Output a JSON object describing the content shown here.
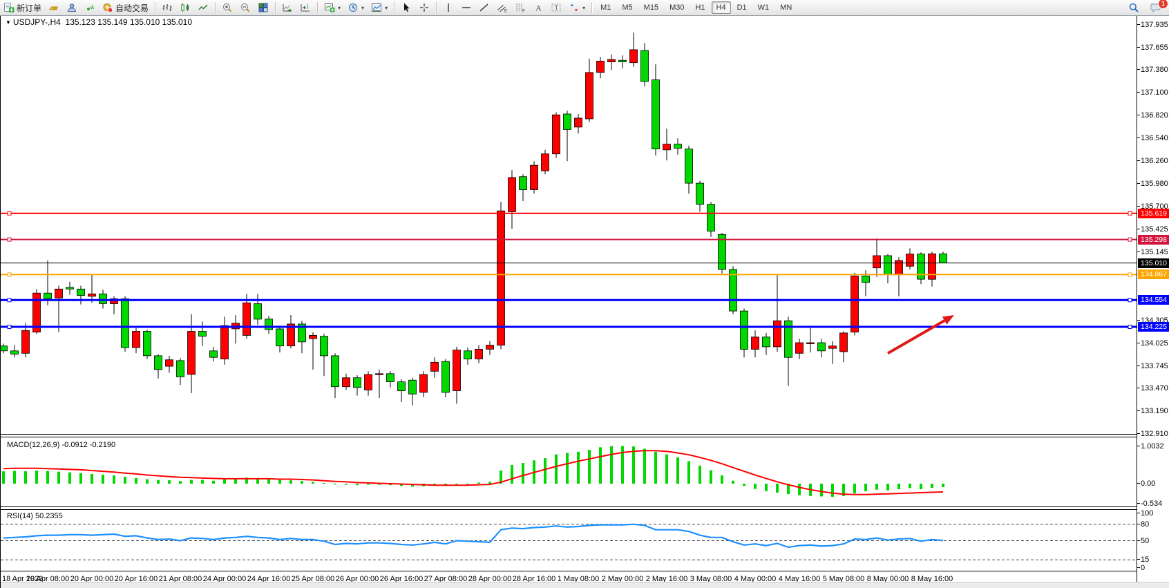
{
  "toolbar": {
    "buttons": [
      {
        "name": "new-order",
        "label": "新订单"
      },
      {
        "name": "gold"
      },
      {
        "name": "community"
      },
      {
        "name": "signals"
      },
      {
        "name": "auto-trading",
        "label": "自动交易"
      },
      {
        "name": "separator"
      },
      {
        "name": "bars-chart"
      },
      {
        "name": "candles-chart"
      },
      {
        "name": "line-chart"
      },
      {
        "name": "separator"
      },
      {
        "name": "zoom-in"
      },
      {
        "name": "zoom-out"
      },
      {
        "name": "tile-windows"
      },
      {
        "name": "separator"
      },
      {
        "name": "auto-scroll"
      },
      {
        "name": "chart-shift"
      },
      {
        "name": "separator"
      },
      {
        "name": "new-chart",
        "caret": true
      },
      {
        "name": "profiles",
        "caret": true
      },
      {
        "name": "templates",
        "caret": true
      },
      {
        "name": "separator"
      },
      {
        "name": "cursor"
      },
      {
        "name": "crosshair"
      },
      {
        "name": "separator"
      },
      {
        "name": "vertical-line"
      },
      {
        "name": "horizontal-line"
      },
      {
        "name": "trendline"
      },
      {
        "name": "equidistant-channel"
      },
      {
        "name": "fibonacci"
      },
      {
        "name": "text"
      },
      {
        "name": "text-label"
      },
      {
        "name": "arrows",
        "caret": true
      },
      {
        "name": "separator"
      }
    ],
    "timeframes": [
      "M1",
      "M5",
      "M15",
      "M30",
      "H1",
      "H4",
      "D1",
      "W1",
      "MN"
    ],
    "active_timeframe": "H4",
    "notification_count": "1"
  },
  "chart": {
    "title_marker": "▼",
    "symbol_timeframe": "USDJPY-,H4",
    "ohlc_text": "135.123 135.149 135.010 135.010"
  },
  "price_axis": {
    "ticks": [
      "137.935",
      "137.655",
      "137.380",
      "137.100",
      "136.820",
      "136.540",
      "136.260",
      "135.980",
      "135.700",
      "135.425",
      "135.145",
      "134.305",
      "134.025",
      "133.745",
      "133.470",
      "133.190",
      "132.910"
    ]
  },
  "time_axis": {
    "labels": [
      "18 Apr 2023",
      "19 Apr 08:00",
      "20 Apr 00:00",
      "20 Apr 16:00",
      "21 Apr 08:00",
      "24 Apr 00:00",
      "24 Apr 16:00",
      "25 Apr 08:00",
      "26 Apr 00:00",
      "26 Apr 16:00",
      "27 Apr 08:00",
      "28 Apr 00:00",
      "28 Apr 16:00",
      "1 May 08:00",
      "2 May 00:00",
      "2 May 16:00",
      "3 May 08:00",
      "4 May 00:00",
      "4 May 16:00",
      "5 May 08:00",
      "8 May 00:00",
      "8 May 16:00"
    ]
  },
  "macd": {
    "name": "MACD(12,26,9)",
    "values": "-0.0912 -0.2190",
    "axis_labels": [
      "1.0032",
      "0.00",
      "-0.534"
    ],
    "axis_values": [
      1.0032,
      0,
      -0.534
    ]
  },
  "rsi": {
    "name": "RSI(14)",
    "value": "50.2355",
    "axis_labels": [
      "100",
      "80",
      "50",
      "15",
      "0"
    ],
    "axis_values": [
      100,
      80,
      50,
      15,
      0
    ],
    "level_lines": [
      80,
      50,
      15
    ]
  },
  "chart_data": {
    "type": "candlestick",
    "symbol": "USDJPY-",
    "timeframe": "H4",
    "title": "USDJPY-,H4 135.123 135.149 135.010 135.010",
    "current_bar": {
      "open": 135.123,
      "high": 135.149,
      "low": 135.01,
      "close": 135.01
    },
    "y_axis_range": [
      132.85,
      138.05
    ],
    "bull_color": "#FF0000",
    "bear_color": "#00D800",
    "candles_ohlc": [
      [
        133.99,
        134.02,
        133.9,
        133.93
      ],
      [
        133.93,
        134.0,
        133.85,
        133.89
      ],
      [
        133.9,
        134.27,
        133.85,
        134.18
      ],
      [
        134.16,
        134.69,
        134.14,
        134.64
      ],
      [
        134.64,
        135.04,
        134.49,
        134.57
      ],
      [
        134.58,
        134.73,
        134.16,
        134.69
      ],
      [
        134.71,
        134.78,
        134.62,
        134.69
      ],
      [
        134.69,
        134.73,
        134.5,
        134.61
      ],
      [
        134.6,
        134.87,
        134.52,
        134.63
      ],
      [
        134.63,
        134.68,
        134.45,
        134.51
      ],
      [
        134.51,
        134.6,
        134.38,
        134.57
      ],
      [
        134.57,
        134.6,
        133.92,
        133.97
      ],
      [
        133.97,
        134.21,
        133.9,
        134.17
      ],
      [
        134.17,
        134.19,
        133.83,
        133.87
      ],
      [
        133.87,
        133.89,
        133.59,
        133.7
      ],
      [
        133.74,
        133.87,
        133.66,
        133.82
      ],
      [
        133.81,
        133.84,
        133.51,
        133.61
      ],
      [
        133.64,
        134.38,
        133.41,
        134.17
      ],
      [
        134.17,
        134.29,
        133.99,
        134.11
      ],
      [
        133.93,
        133.98,
        133.8,
        133.85
      ],
      [
        133.83,
        134.35,
        133.76,
        134.24
      ],
      [
        134.2,
        134.37,
        134.02,
        134.27
      ],
      [
        134.12,
        134.63,
        134.08,
        134.52
      ],
      [
        134.51,
        134.63,
        134.25,
        134.32
      ],
      [
        134.32,
        134.36,
        134.14,
        134.19
      ],
      [
        134.2,
        134.24,
        133.91,
        133.99
      ],
      [
        133.99,
        134.37,
        133.96,
        134.26
      ],
      [
        134.26,
        134.3,
        133.9,
        134.04
      ],
      [
        134.08,
        134.16,
        133.7,
        134.12
      ],
      [
        134.11,
        134.14,
        133.62,
        133.87
      ],
      [
        133.87,
        133.9,
        133.35,
        133.49
      ],
      [
        133.49,
        133.65,
        133.45,
        133.6
      ],
      [
        133.6,
        133.63,
        133.38,
        133.48
      ],
      [
        133.45,
        133.68,
        133.38,
        133.64
      ],
      [
        133.64,
        133.7,
        133.35,
        133.65
      ],
      [
        133.65,
        133.68,
        133.48,
        133.55
      ],
      [
        133.55,
        133.58,
        133.3,
        133.44
      ],
      [
        133.57,
        133.6,
        133.26,
        133.4
      ],
      [
        133.42,
        133.68,
        133.36,
        133.64
      ],
      [
        133.68,
        133.85,
        133.6,
        133.79
      ],
      [
        133.8,
        133.83,
        133.36,
        133.42
      ],
      [
        133.44,
        133.98,
        133.28,
        133.94
      ],
      [
        133.93,
        133.97,
        133.76,
        133.83
      ],
      [
        133.83,
        134.0,
        133.78,
        133.95
      ],
      [
        133.95,
        134.05,
        133.88,
        134.0
      ],
      [
        134.0,
        135.76,
        133.95,
        135.65
      ],
      [
        135.64,
        136.15,
        135.43,
        136.06
      ],
      [
        136.07,
        136.1,
        135.77,
        135.91
      ],
      [
        135.91,
        136.26,
        135.86,
        136.21
      ],
      [
        136.14,
        136.4,
        136.1,
        136.35
      ],
      [
        136.35,
        136.86,
        136.3,
        136.83
      ],
      [
        136.84,
        136.88,
        136.26,
        136.65
      ],
      [
        136.68,
        136.84,
        136.6,
        136.79
      ],
      [
        136.78,
        137.52,
        136.74,
        137.35
      ],
      [
        137.35,
        137.54,
        137.28,
        137.49
      ],
      [
        137.48,
        137.57,
        137.38,
        137.51
      ],
      [
        137.5,
        137.56,
        137.4,
        137.48
      ],
      [
        137.47,
        137.84,
        137.42,
        137.63
      ],
      [
        137.62,
        137.71,
        137.18,
        137.24
      ],
      [
        137.26,
        137.45,
        136.33,
        136.41
      ],
      [
        136.4,
        136.66,
        136.27,
        136.47
      ],
      [
        136.47,
        136.54,
        136.34,
        136.42
      ],
      [
        136.41,
        136.45,
        135.86,
        135.99
      ],
      [
        135.99,
        136.02,
        135.64,
        135.73
      ],
      [
        135.73,
        135.76,
        135.33,
        135.4
      ],
      [
        135.36,
        135.38,
        134.88,
        134.93
      ],
      [
        134.93,
        134.97,
        134.38,
        134.42
      ],
      [
        134.42,
        134.45,
        133.85,
        133.95
      ],
      [
        133.95,
        134.18,
        133.85,
        134.1
      ],
      [
        134.1,
        134.15,
        133.88,
        133.98
      ],
      [
        133.98,
        134.87,
        133.92,
        134.3
      ],
      [
        134.3,
        134.35,
        133.5,
        133.85
      ],
      [
        133.9,
        134.08,
        133.83,
        134.03
      ],
      [
        134.03,
        134.23,
        133.91,
        134.03
      ],
      [
        134.03,
        134.08,
        133.85,
        133.93
      ],
      [
        133.96,
        134.05,
        133.77,
        133.99
      ],
      [
        133.92,
        134.17,
        133.79,
        134.15
      ],
      [
        134.16,
        134.89,
        134.12,
        134.85
      ],
      [
        134.85,
        134.92,
        134.6,
        134.77
      ],
      [
        134.95,
        135.31,
        134.84,
        135.1
      ],
      [
        135.1,
        135.12,
        134.76,
        134.87
      ],
      [
        134.87,
        135.08,
        134.6,
        135.04
      ],
      [
        134.97,
        135.19,
        134.93,
        135.12
      ],
      [
        135.12,
        135.14,
        134.75,
        134.81
      ],
      [
        134.81,
        135.15,
        134.72,
        135.123
      ],
      [
        135.123,
        135.149,
        135.01,
        135.01
      ]
    ],
    "horizontal_lines": [
      {
        "price": 135.619,
        "color": "#FF0000",
        "width": 2,
        "label": "135.619"
      },
      {
        "price": 135.298,
        "color": "#D2143C",
        "width": 2,
        "label": "135.298"
      },
      {
        "price": 135.01,
        "color": "#000000",
        "width": 1,
        "label": "135.010",
        "role": "current-price"
      },
      {
        "price": 134.867,
        "color": "#FFA500",
        "width": 2,
        "label": "134.867"
      },
      {
        "price": 134.554,
        "color": "#0000FF",
        "width": 3,
        "label": "134.554"
      },
      {
        "price": 134.225,
        "color": "#0000FF",
        "width": 3,
        "label": "134.225"
      }
    ],
    "macd_histogram": [
      0.33,
      0.34,
      0.33,
      0.35,
      0.34,
      0.32,
      0.3,
      0.28,
      0.26,
      0.24,
      0.22,
      0.18,
      0.15,
      0.12,
      0.1,
      0.09,
      0.07,
      0.1,
      0.1,
      0.08,
      0.12,
      0.14,
      0.16,
      0.15,
      0.13,
      0.1,
      0.09,
      0.07,
      0.05,
      0.02,
      -0.02,
      -0.03,
      -0.04,
      -0.03,
      -0.03,
      -0.04,
      -0.06,
      -0.08,
      -0.07,
      -0.05,
      -0.06,
      -0.02,
      0.0,
      0.03,
      0.05,
      0.35,
      0.5,
      0.55,
      0.62,
      0.68,
      0.78,
      0.82,
      0.85,
      0.9,
      0.97,
      1.0,
      1.0032,
      0.99,
      0.93,
      0.85,
      0.78,
      0.7,
      0.6,
      0.48,
      0.36,
      0.22,
      0.08,
      -0.06,
      -0.14,
      -0.2,
      -0.24,
      -0.28,
      -0.31,
      -0.33,
      -0.34,
      -0.35,
      -0.33,
      -0.26,
      -0.2,
      -0.16,
      -0.18,
      -0.15,
      -0.12,
      -0.15,
      -0.11,
      -0.0912
    ],
    "macd_signal": [
      0.4,
      0.41,
      0.41,
      0.41,
      0.4,
      0.39,
      0.38,
      0.37,
      0.35,
      0.33,
      0.31,
      0.28,
      0.26,
      0.23,
      0.21,
      0.19,
      0.17,
      0.16,
      0.15,
      0.14,
      0.13,
      0.13,
      0.13,
      0.13,
      0.13,
      0.12,
      0.12,
      0.11,
      0.1,
      0.08,
      0.06,
      0.05,
      0.03,
      0.02,
      0.01,
      0.0,
      -0.01,
      -0.02,
      -0.03,
      -0.04,
      -0.04,
      -0.04,
      -0.04,
      -0.03,
      -0.02,
      0.04,
      0.13,
      0.22,
      0.3,
      0.38,
      0.46,
      0.53,
      0.6,
      0.66,
      0.72,
      0.78,
      0.83,
      0.86,
      0.88,
      0.88,
      0.86,
      0.82,
      0.77,
      0.7,
      0.62,
      0.53,
      0.43,
      0.33,
      0.23,
      0.14,
      0.05,
      -0.03,
      -0.1,
      -0.16,
      -0.21,
      -0.25,
      -0.28,
      -0.29,
      -0.29,
      -0.28,
      -0.27,
      -0.26,
      -0.25,
      -0.24,
      -0.23,
      -0.219
    ],
    "rsi_values": [
      55,
      56,
      57,
      59,
      60,
      60,
      61,
      61,
      60,
      61,
      62,
      58,
      59,
      55,
      52,
      53,
      50,
      55,
      54,
      52,
      55,
      56,
      58,
      56,
      55,
      52,
      54,
      52,
      52,
      49,
      43,
      45,
      44,
      46,
      46,
      45,
      43,
      42,
      44,
      47,
      44,
      50,
      49,
      48,
      47,
      70,
      73,
      72,
      74,
      75,
      77,
      75,
      76,
      78,
      79,
      79,
      79,
      80,
      78,
      70,
      70,
      70,
      67,
      60,
      56,
      56,
      48,
      42,
      44,
      41,
      45,
      38,
      41,
      42,
      40,
      41,
      44,
      53,
      52,
      55,
      51,
      53,
      54,
      49,
      52,
      50.2355
    ],
    "arrow_annotation": {
      "from_bar": 80,
      "from_price": 133.9,
      "to_bar": 86,
      "to_price": 134.37,
      "color": "#E01818"
    }
  }
}
